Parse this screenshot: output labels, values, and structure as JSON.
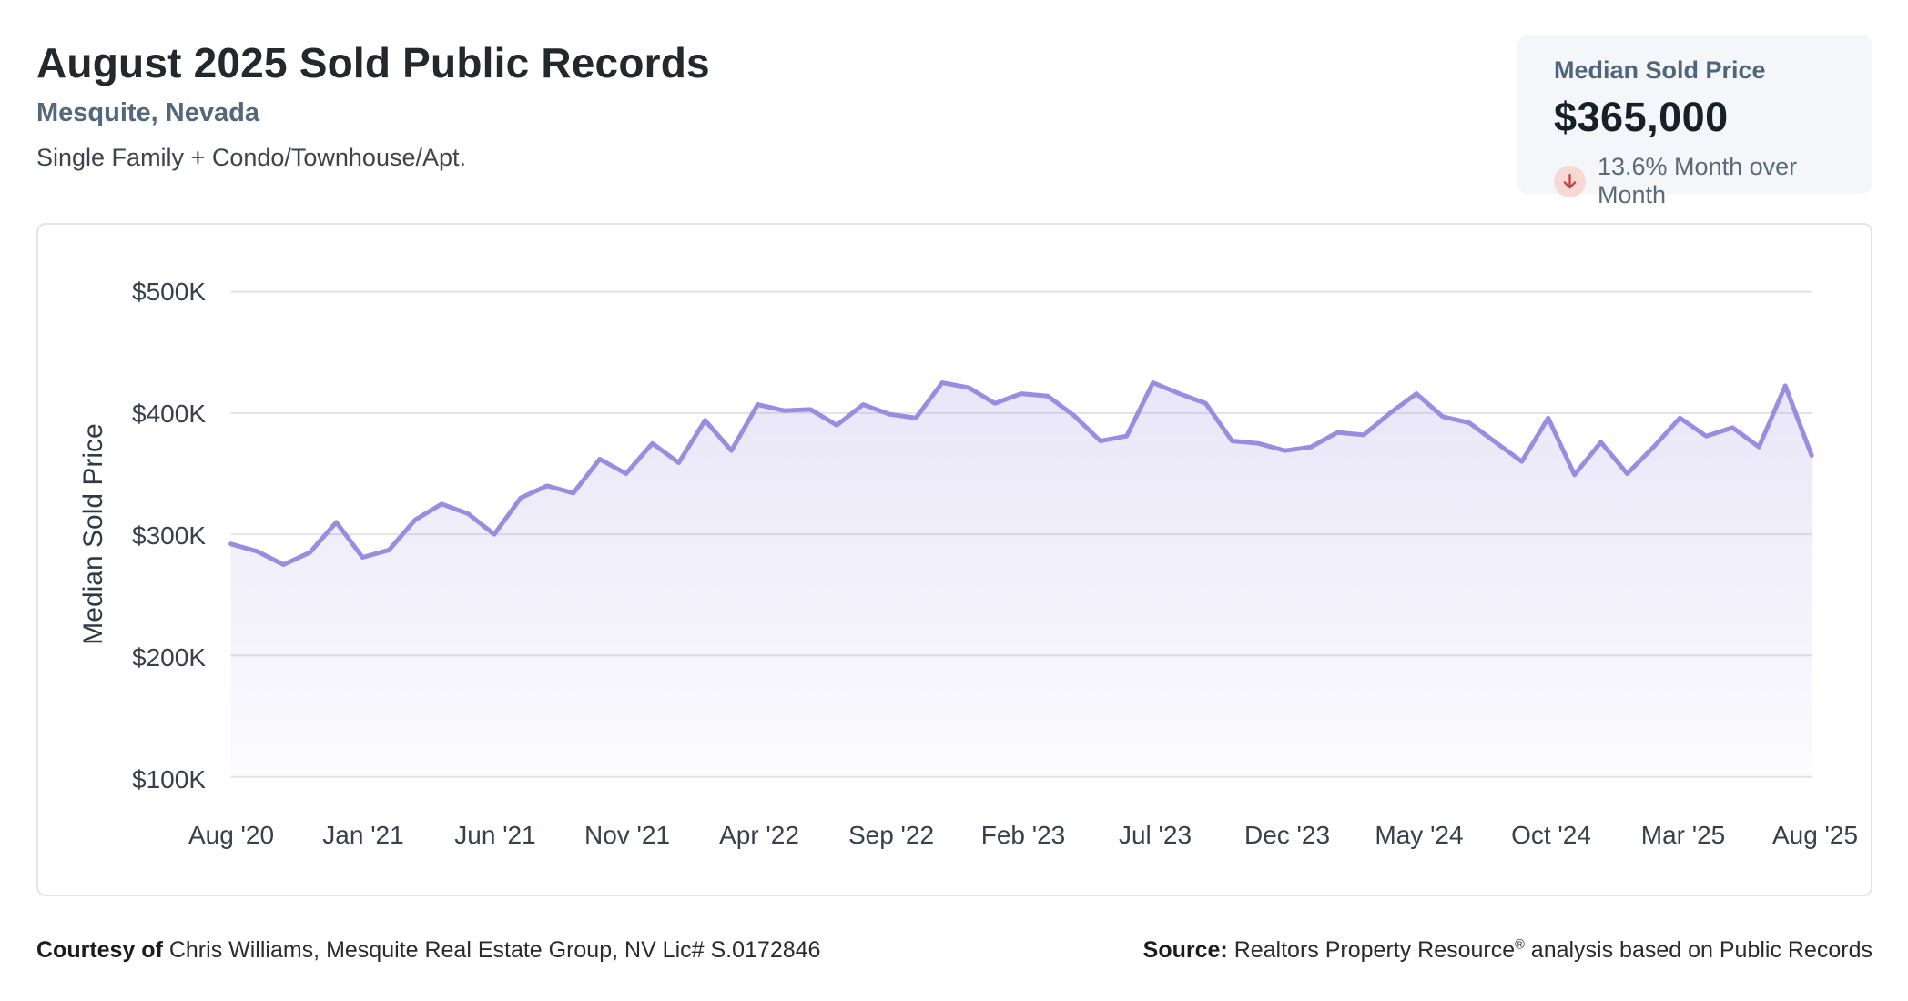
{
  "header": {
    "title": "August 2025 Sold Public Records",
    "location": "Mesquite, Nevada",
    "property_types": "Single Family + Condo/Townhouse/Apt."
  },
  "kpi_card": {
    "label": "Median Sold Price",
    "value": "$365,000",
    "change_direction": "down",
    "change_text": "13.6% Month over Month"
  },
  "footer": {
    "courtesy_label": "Courtesy of",
    "courtesy_text": " Chris Williams, Mesquite Real Estate Group, NV Lic# S.0172846",
    "source_label": "Source:",
    "source_name": " Realtors Property Resource",
    "source_registered": "®",
    "source_suffix": " analysis based on Public Records"
  },
  "colors": {
    "line": "#9a8ce0",
    "fill_top": "rgba(154,140,224,0.22)",
    "fill_bottom": "rgba(154,140,224,0.03)",
    "gridline": "#e3e3e5",
    "kpi_card_bg": "#f4f6f9",
    "down_badge_bg": "#f7d8d3",
    "down_arrow": "#c2403c",
    "slate_accent": "#53687d"
  },
  "chart_data": {
    "type": "area",
    "title": "",
    "xlabel": "",
    "ylabel": "Median Sold Price",
    "unit": "thousand USD",
    "ylim": [
      100,
      500
    ],
    "grid": true,
    "legend": "none",
    "y_tick_values": [
      500,
      400,
      300,
      200,
      100
    ],
    "y_tick_labels": [
      "$500K",
      "$400K",
      "$300K",
      "$200K",
      "$100K"
    ],
    "x_tick_labels": [
      "Aug '20",
      "Jan '21",
      "Jun '21",
      "Nov '21",
      "Apr '22",
      "Sep '22",
      "Feb '23",
      "Jul '23",
      "Dec '23",
      "May '24",
      "Oct '24",
      "Mar '25",
      "Aug '25"
    ],
    "x_tick_every": 5,
    "months": [
      "Aug '20",
      "Sep '20",
      "Oct '20",
      "Nov '20",
      "Dec '20",
      "Jan '21",
      "Feb '21",
      "Mar '21",
      "Apr '21",
      "May '21",
      "Jun '21",
      "Jul '21",
      "Aug '21",
      "Sep '21",
      "Oct '21",
      "Nov '21",
      "Dec '21",
      "Jan '22",
      "Feb '22",
      "Mar '22",
      "Apr '22",
      "May '22",
      "Jun '22",
      "Jul '22",
      "Aug '22",
      "Sep '22",
      "Oct '22",
      "Nov '22",
      "Dec '22",
      "Jan '23",
      "Feb '23",
      "Mar '23",
      "Apr '23",
      "May '23",
      "Jun '23",
      "Jul '23",
      "Aug '23",
      "Sep '23",
      "Oct '23",
      "Nov '23",
      "Dec '23",
      "Jan '24",
      "Feb '24",
      "Mar '24",
      "Apr '24",
      "May '24",
      "Jun '24",
      "Jul '24",
      "Aug '24",
      "Sep '24",
      "Oct '24",
      "Nov '24",
      "Dec '24",
      "Jan '25",
      "Feb '25",
      "Mar '25",
      "Apr '25",
      "May '25",
      "Jun '25",
      "Jul '25",
      "Aug '25"
    ],
    "values": [
      292,
      286,
      275,
      285,
      310,
      281,
      287,
      312,
      325,
      317,
      300,
      330,
      340,
      334,
      362,
      350,
      375,
      359,
      394,
      369,
      407,
      402,
      403,
      390,
      407,
      399,
      396,
      425,
      421,
      408,
      416,
      414,
      398,
      377,
      381,
      425,
      416,
      408,
      377,
      375,
      369,
      372,
      384,
      382,
      400,
      416,
      397,
      392,
      376,
      360,
      396,
      349,
      376,
      350,
      372,
      396,
      381,
      388,
      372,
      422.5,
      365
    ]
  }
}
